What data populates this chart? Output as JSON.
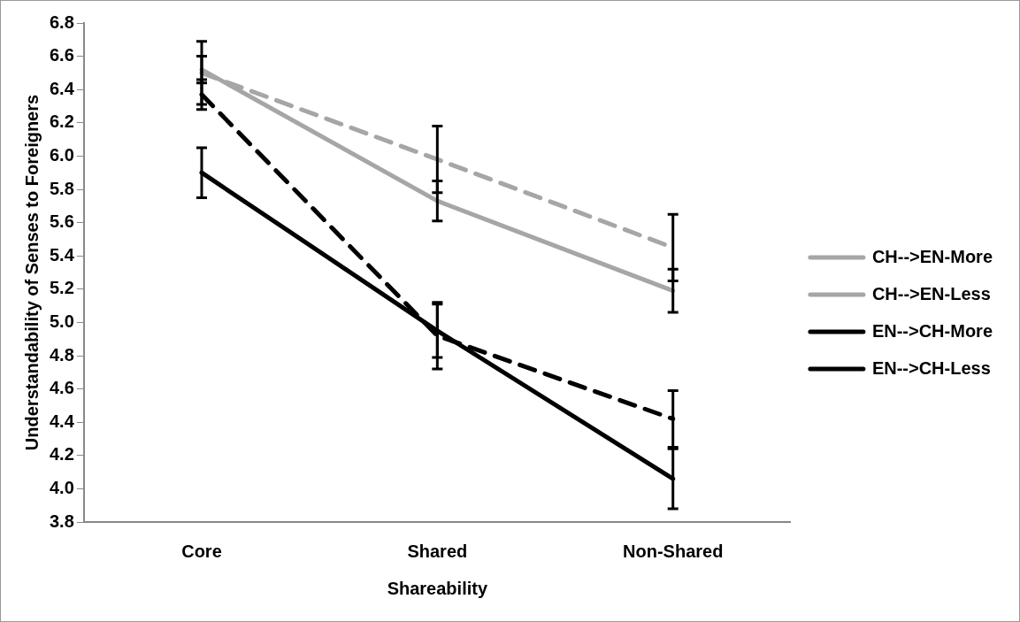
{
  "chart_data": {
    "type": "line",
    "xlabel": "Shareability",
    "ylabel": "Understandability of Senses to Foreigners",
    "categories": [
      "Core",
      "Shared",
      "Non-Shared"
    ],
    "ylim": [
      3.8,
      6.8
    ],
    "yticks": [
      {
        "value": 3.8,
        "label": "3.8"
      },
      {
        "value": 4.0,
        "label": "4.0"
      },
      {
        "value": 4.2,
        "label": "4.2"
      },
      {
        "value": 4.4,
        "label": "4.4"
      },
      {
        "value": 4.6,
        "label": "4.6"
      },
      {
        "value": 4.8,
        "label": "4.8"
      },
      {
        "value": 5.0,
        "label": "5.0"
      },
      {
        "value": 5.2,
        "label": "5.2"
      },
      {
        "value": 5.4,
        "label": "5.4"
      },
      {
        "value": 5.6,
        "label": "5.6"
      },
      {
        "value": 5.8,
        "label": "5.8"
      },
      {
        "value": 6.0,
        "label": "6.0"
      },
      {
        "value": 6.2,
        "label": "6.2"
      },
      {
        "value": 6.4,
        "label": "6.4"
      },
      {
        "value": 6.6,
        "label": "6.6"
      },
      {
        "value": 6.8,
        "label": "6.8"
      }
    ],
    "grid": false,
    "legend": "right",
    "marker": "none",
    "series": [
      {
        "name": "CH-->EN-More",
        "color": "#a6a6a6",
        "line_style": "solid",
        "values": [
          6.52,
          5.73,
          5.19
        ],
        "errors": [
          0.08,
          0.12,
          0.13
        ]
      },
      {
        "name": "CH-->EN-Less",
        "color": "#a6a6a6",
        "line_style": "dashed",
        "values": [
          6.5,
          5.98,
          5.45
        ],
        "errors": [
          0.19,
          0.2,
          0.2
        ]
      },
      {
        "name": "EN-->CH-More",
        "color": "#000000",
        "line_style": "solid",
        "values": [
          5.9,
          4.95,
          4.06
        ],
        "errors": [
          0.15,
          0.16,
          0.18
        ]
      },
      {
        "name": "EN-->CH-Less",
        "color": "#000000",
        "line_style": "dashed",
        "values": [
          6.37,
          4.92,
          4.42
        ],
        "errors": [
          0.09,
          0.2,
          0.17
        ]
      }
    ]
  }
}
